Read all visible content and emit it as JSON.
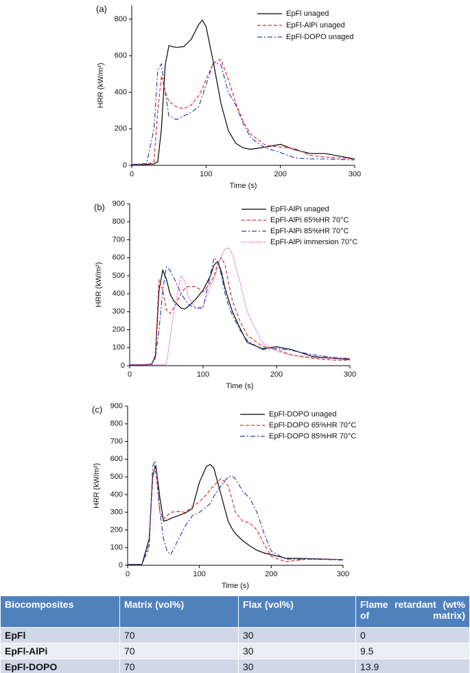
{
  "chart_data": [
    {
      "type": "line",
      "panel": "(a)",
      "xlabel": "Time (s)",
      "ylabel": "HRR (kW/m²)",
      "xlim": [
        0,
        300
      ],
      "xticks": [
        0,
        100,
        200,
        300
      ],
      "ylim": [
        0,
        875
      ],
      "yticks": [
        0,
        200,
        400,
        600,
        800
      ],
      "legend": "upper right",
      "x": [
        0,
        20,
        30,
        35,
        40,
        45,
        50,
        60,
        70,
        80,
        90,
        95,
        100,
        110,
        120,
        130,
        140,
        150,
        160,
        180,
        200,
        220,
        240,
        260,
        280,
        300
      ],
      "series": [
        {
          "name": "EpFl unaged",
          "color": "#000000",
          "linestyle": "solid",
          "values": [
            5,
            5,
            8,
            20,
            200,
            550,
            655,
            645,
            650,
            690,
            770,
            795,
            760,
            560,
            340,
            190,
            120,
            95,
            88,
            100,
            115,
            85,
            65,
            65,
            50,
            35
          ]
        },
        {
          "name": "EpFl-AlPi unaged",
          "color": "#e8262b",
          "linestyle": "dashed",
          "values": [
            5,
            5,
            20,
            300,
            490,
            400,
            350,
            320,
            310,
            330,
            380,
            420,
            470,
            560,
            580,
            470,
            340,
            240,
            170,
            110,
            100,
            90,
            55,
            45,
            40,
            35
          ]
        },
        {
          "name": "EpFl-DOPO unaged",
          "color": "#2a3fb8",
          "linestyle": "dashdot",
          "values": [
            5,
            10,
            200,
            520,
            555,
            400,
            270,
            250,
            270,
            290,
            320,
            380,
            440,
            565,
            550,
            400,
            330,
            230,
            150,
            95,
            70,
            40,
            35,
            35,
            32,
            30
          ]
        }
      ]
    },
    {
      "type": "line",
      "panel": "(b)",
      "xlabel": "Time (s)",
      "ylabel": "HRR (kW/m²)",
      "xlim": [
        0,
        300
      ],
      "xticks": [
        0,
        100,
        200,
        300
      ],
      "ylim": [
        0,
        900
      ],
      "yticks": [
        0,
        100,
        200,
        300,
        400,
        500,
        600,
        700,
        800,
        900
      ],
      "legend": "upper right",
      "x": [
        0,
        20,
        30,
        35,
        40,
        45,
        50,
        55,
        60,
        70,
        75,
        80,
        90,
        100,
        110,
        115,
        120,
        125,
        130,
        135,
        140,
        150,
        160,
        180,
        200,
        220,
        250,
        280,
        300
      ],
      "series": [
        {
          "name": "EpFl-AlPi unaged",
          "color": "#000000",
          "linestyle": "solid",
          "values": [
            5,
            5,
            8,
            50,
            420,
            530,
            480,
            400,
            360,
            320,
            315,
            330,
            370,
            420,
            500,
            560,
            580,
            520,
            430,
            360,
            300,
            210,
            130,
            95,
            105,
            90,
            50,
            40,
            35
          ]
        },
        {
          "name": "EpFl-AlPi 65%HR 70°C",
          "color": "#e8262b",
          "linestyle": "dashed",
          "values": [
            5,
            5,
            10,
            60,
            480,
            420,
            310,
            290,
            320,
            400,
            430,
            440,
            440,
            410,
            460,
            500,
            570,
            600,
            560,
            450,
            360,
            250,
            170,
            110,
            90,
            60,
            40,
            30,
            30
          ]
        },
        {
          "name": "EpFl-AlPi 85%HR 70°C",
          "color": "#2a3fb8",
          "linestyle": "dashdot",
          "values": [
            5,
            5,
            10,
            40,
            200,
            420,
            550,
            530,
            490,
            400,
            370,
            340,
            320,
            320,
            510,
            600,
            580,
            500,
            400,
            330,
            280,
            200,
            140,
            90,
            95,
            85,
            60,
            45,
            40
          ]
        },
        {
          "name": "EpFl-AlPi immersion 70°C",
          "color": "#c83ca8",
          "linestyle": "dotted",
          "values": [
            5,
            5,
            5,
            5,
            5,
            5,
            8,
            150,
            300,
            500,
            470,
            380,
            320,
            330,
            440,
            480,
            550,
            610,
            650,
            655,
            620,
            470,
            300,
            130,
            80,
            60,
            45,
            40,
            40
          ]
        }
      ]
    },
    {
      "type": "line",
      "panel": "(c)",
      "xlabel": "Time (s)",
      "ylabel": "HRR (kW/m²)",
      "xlim": [
        0,
        300
      ],
      "xticks": [
        0,
        100,
        200,
        300
      ],
      "ylim": [
        0,
        900
      ],
      "yticks": [
        0,
        100,
        200,
        300,
        400,
        500,
        600,
        700,
        800,
        900
      ],
      "legend": "upper right",
      "x": [
        0,
        20,
        30,
        35,
        38,
        40,
        45,
        50,
        55,
        60,
        70,
        80,
        90,
        100,
        110,
        115,
        120,
        130,
        140,
        145,
        150,
        160,
        170,
        180,
        190,
        200,
        220,
        250,
        300
      ],
      "series": [
        {
          "name": "EpFl-DOPO unaged",
          "color": "#000000",
          "linestyle": "solid",
          "values": [
            5,
            5,
            150,
            500,
            560,
            540,
            380,
            250,
            255,
            265,
            280,
            295,
            320,
            470,
            560,
            570,
            550,
            400,
            250,
            210,
            180,
            140,
            110,
            85,
            70,
            60,
            40,
            38,
            32
          ]
        },
        {
          "name": "EpFl-DOPO 65%HR 70°C",
          "color": "#e8262b",
          "linestyle": "dashed",
          "values": [
            5,
            5,
            100,
            520,
            550,
            500,
            300,
            260,
            280,
            300,
            305,
            300,
            330,
            360,
            400,
            430,
            450,
            490,
            450,
            380,
            300,
            250,
            240,
            200,
            120,
            50,
            20,
            35,
            32
          ]
        },
        {
          "name": "EpFl-DOPO 85%HR 70°C",
          "color": "#2a3fb8",
          "linestyle": "dashdot",
          "values": [
            5,
            5,
            120,
            560,
            590,
            550,
            300,
            150,
            80,
            60,
            140,
            220,
            280,
            300,
            330,
            350,
            390,
            450,
            500,
            505,
            490,
            420,
            380,
            300,
            180,
            80,
            35,
            35,
            30
          ]
        }
      ]
    }
  ],
  "table": {
    "header": [
      "Biocomposites",
      "Matrix (vol%)",
      "Flax (vol%)",
      "Flame retardant (wt% of matrix)"
    ],
    "rows": [
      [
        "EpFl",
        "70",
        "30",
        "0"
      ],
      [
        "EpFl-AlPi",
        "70",
        "30",
        "9.5"
      ],
      [
        "EpFl-DOPO",
        "70",
        "30",
        "13.9"
      ]
    ]
  }
}
